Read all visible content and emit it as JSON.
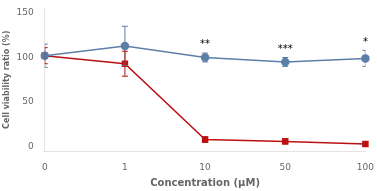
{
  "chart_data": {
    "type": "line",
    "xlabel": "Concentration (μM)",
    "ylabel": "Cell viability ratio (%)",
    "categories": [
      "0",
      "1",
      "10",
      "50",
      "100"
    ],
    "series": [
      {
        "color": "#5b7fa6",
        "marker": "circle",
        "values": [
          102,
          113,
          100,
          95,
          99
        ],
        "yerr": [
          13,
          22,
          5,
          5,
          9
        ]
      },
      {
        "color": "#bb1111",
        "marker": "square",
        "values": [
          102,
          93,
          8,
          6,
          3
        ],
        "yerr": [
          9,
          14,
          3,
          3,
          1.5
        ]
      }
    ],
    "ylim": [
      -5,
      155
    ],
    "yticks": [
      0,
      50,
      100,
      150
    ],
    "grid": false,
    "annotations": [
      {
        "x": "10",
        "y": 109,
        "text": "**"
      },
      {
        "x": "50",
        "y": 103,
        "text": "***"
      },
      {
        "x": "100",
        "y": 111,
        "text": "*"
      }
    ]
  }
}
